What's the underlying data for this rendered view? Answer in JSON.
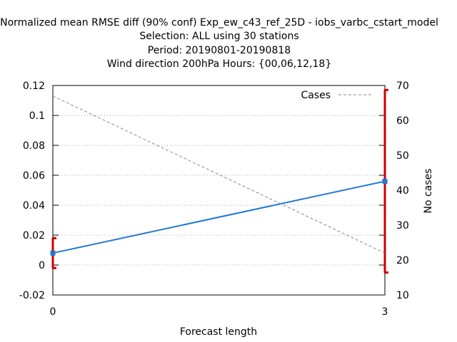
{
  "chart_data": {
    "type": "line",
    "title_lines": [
      "Normalized mean RMSE diff (90% conf) Exp_ew_c43_ref_25D - iobs_varbc_cstart_model",
      "Selection: ALL using    30 stations",
      "Period: 20190801-20190818",
      "Wind direction 200hPa   Hours: {00,06,12,18}"
    ],
    "xlabel": "Forecast length",
    "ylabel": "",
    "y2label": "No cases",
    "x": [
      0,
      3
    ],
    "xlim": [
      0,
      3
    ],
    "ylim": [
      -0.02,
      0.12
    ],
    "y2lim": [
      10,
      70
    ],
    "x_ticks": [
      0,
      3
    ],
    "y_ticks": [
      -0.02,
      0,
      0.02,
      0.04,
      0.06,
      0.08,
      0.1,
      0.12
    ],
    "y_tick_labels": [
      "-0.02",
      "0",
      "0.02",
      "0.04",
      "0.06",
      "0.08",
      "0.1",
      "0.12"
    ],
    "y2_ticks": [
      10,
      20,
      30,
      40,
      50,
      60,
      70
    ],
    "grid": true,
    "legend_position": "top-right",
    "series": [
      {
        "values": [
          0.008,
          0.056
        ],
        "error_low": [
          -0.002,
          -0.005
        ],
        "error_high": [
          0.018,
          0.117
        ],
        "color": "#1f78d4",
        "error_color": "#cc0000",
        "axis": "y"
      },
      {
        "name": "Cases",
        "values": [
          67,
          22
        ],
        "color": "#888888",
        "dashed": true,
        "axis": "y2"
      }
    ]
  }
}
